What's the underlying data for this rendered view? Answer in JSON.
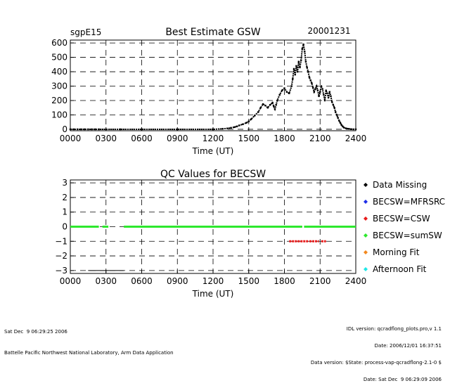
{
  "chart_data": [
    {
      "type": "scatter",
      "site_label": "sgpE15",
      "title": "Best Estimate GSW",
      "date_label": "20001231",
      "xlabel": "Time (UT)",
      "ylabel": "",
      "xlim": [
        0,
        2400
      ],
      "ylim": [
        -10,
        620
      ],
      "grid": true,
      "x_ticks": [
        "0000",
        "0300",
        "0600",
        "0900",
        "1200",
        "1500",
        "1800",
        "2100",
        "2400"
      ],
      "y_ticks": [
        "0",
        "100",
        "200",
        "300",
        "400",
        "500",
        "600"
      ],
      "y_tick_values": [
        0,
        100,
        200,
        300,
        400,
        500,
        600
      ],
      "marker_color": "#000000",
      "series": [
        {
          "x": [
            0,
            30,
            60,
            90,
            120,
            150,
            180,
            210,
            240,
            420,
            600,
            900,
            1200,
            1280,
            1320,
            1350,
            1380,
            1400,
            1420,
            1450,
            1480,
            1500,
            1520,
            1550,
            1580,
            1600,
            1620,
            1640,
            1660,
            1680,
            1700,
            1710,
            1720,
            1730,
            1740,
            1760,
            1780,
            1800,
            1820,
            1840,
            1860,
            1870,
            1880,
            1890,
            1900,
            1910,
            1920,
            1930,
            1940,
            1950,
            1960,
            1970,
            1980,
            1990,
            2000,
            2010,
            2020,
            2030,
            2040,
            2050,
            2060,
            2070,
            2080,
            2090,
            2100,
            2110,
            2120,
            2130,
            2140,
            2150,
            2160,
            2170,
            2180,
            2190,
            2200,
            2210,
            2220,
            2230,
            2240,
            2250,
            2260,
            2270,
            2280,
            2290,
            2300,
            2320,
            2340,
            2360,
            2380,
            2400
          ],
          "y": [
            0,
            0,
            0,
            0,
            0,
            0,
            0,
            0,
            0,
            0,
            0,
            0,
            0,
            3,
            6,
            10,
            15,
            20,
            27,
            35,
            45,
            55,
            70,
            95,
            120,
            150,
            175,
            165,
            150,
            170,
            185,
            160,
            140,
            170,
            200,
            240,
            270,
            285,
            260,
            250,
            300,
            350,
            420,
            380,
            440,
            400,
            470,
            430,
            480,
            560,
            590,
            540,
            470,
            430,
            400,
            360,
            340,
            320,
            290,
            260,
            280,
            300,
            270,
            230,
            260,
            300,
            280,
            240,
            200,
            270,
            250,
            220,
            260,
            230,
            190,
            170,
            150,
            120,
            100,
            80,
            60,
            45,
            30,
            20,
            12,
            6,
            3,
            1,
            0,
            0
          ]
        }
      ]
    },
    {
      "type": "scatter",
      "title": "QC Values for BECSW",
      "xlabel": "Time (UT)",
      "ylabel": "",
      "xlim": [
        0,
        2400
      ],
      "ylim": [
        -3.2,
        3.2
      ],
      "grid": true,
      "x_ticks": [
        "0000",
        "0300",
        "0600",
        "0900",
        "1200",
        "1500",
        "1800",
        "2100",
        "2400"
      ],
      "y_ticks": [
        "3",
        "2",
        "1",
        "0",
        "−1",
        "−2",
        "−3"
      ],
      "y_tick_values": [
        3,
        2,
        1,
        0,
        -1,
        -2,
        -3
      ],
      "green_segments": [
        [
          0,
          240
        ],
        [
          270,
          320
        ],
        [
          450,
          1950
        ],
        [
          1965,
          2400
        ]
      ],
      "red_segments": [
        [
          1840,
          2000
        ],
        [
          2010,
          2090
        ],
        [
          2110,
          2150
        ]
      ],
      "missing_segments": [
        [
          150,
          450
        ]
      ],
      "series": [
        {
          "name": "Data Missing",
          "color": "#000000",
          "value": -3
        },
        {
          "name": "BECSW=MFRSRC",
          "color": "#1f2ee8",
          "value": 1
        },
        {
          "name": "BECSW=CSW",
          "color": "#e81c1c",
          "value": -1
        },
        {
          "name": "BECSW=sumSW",
          "color": "#2ee82e",
          "value": 0
        },
        {
          "name": "Morning Fit",
          "color": "#f2881e",
          "value": 2
        },
        {
          "name": "Afternoon Fit",
          "color": "#1ee8e8",
          "value": -2
        }
      ]
    }
  ],
  "footer": {
    "left_line1": "Sat Dec  9 06:29:25 2006",
    "left_line2": "Battelle Pacific Northwest National Laboratory, Arm Data Application",
    "right_line1": "IDL version: qcradflong_plots.pro,v 1.1",
    "right_line2": "Date: 2006/12/01 16:37:51",
    "right_line3": "Data version: $State: process-vap-qcradflong-2.1-0 $",
    "right_line4": "Date: Sat Dec  9 06:29:09 2006"
  }
}
